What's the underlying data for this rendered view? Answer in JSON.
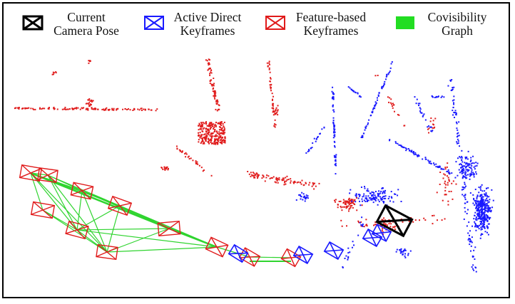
{
  "legend": {
    "current_pose": {
      "line1": "Current",
      "line2": "Camera Pose",
      "color": "#000000"
    },
    "active_direct": {
      "line1": "Active Direct",
      "line2": "Keyframes",
      "color": "#1a1aff"
    },
    "feature_based": {
      "line1": "Feature-based",
      "line2": "Keyframes",
      "color": "#e01b1b"
    },
    "covisibility": {
      "line1": "Covisibility",
      "line2": "Graph",
      "color": "#22dd22"
    }
  },
  "colors": {
    "red_points": "#e01b1b",
    "blue_points": "#1a1aff",
    "graph_edges": "#2fd42f",
    "current_pose": "#000000",
    "frame": "#000000"
  }
}
